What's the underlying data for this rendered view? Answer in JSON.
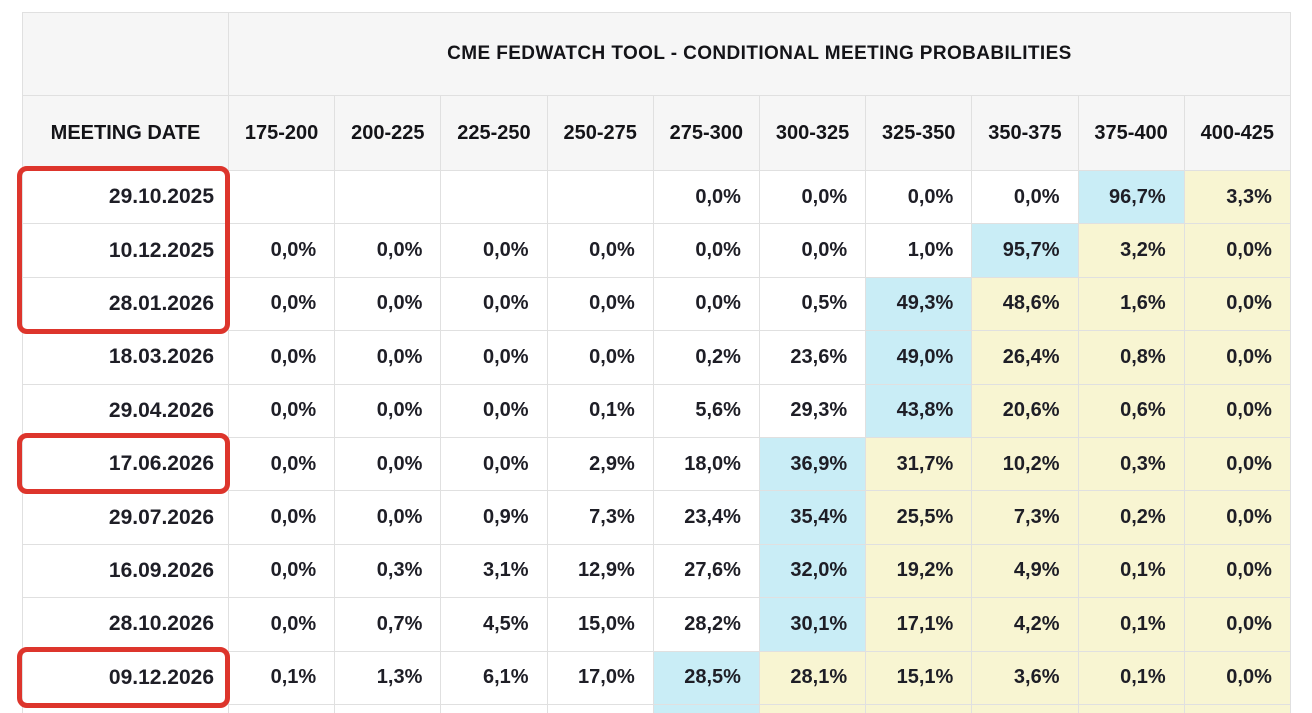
{
  "title": "CME FEDWATCH TOOL - CONDITIONAL MEETING PROBABILITIES",
  "colors": {
    "cyan": "#c9edf6",
    "yellow": "#f8f5d2",
    "red": "#dd352c",
    "grid": "#e0e0e0",
    "header-bg": "#f6f6f6",
    "text": "#1e1e26"
  },
  "chart_data": {
    "type": "table",
    "title": "CME FEDWATCH TOOL - CONDITIONAL MEETING PROBABILITIES",
    "columns": [
      "MEETING DATE",
      "175-200",
      "200-225",
      "225-250",
      "250-275",
      "275-300",
      "300-325",
      "325-350",
      "350-375",
      "375-400",
      "400-425"
    ],
    "rows": [
      {
        "date": "29.10.2025",
        "values": [
          "",
          "",
          "",
          "",
          "0,0%",
          "0,0%",
          "0,0%",
          "0,0%",
          "96,7%",
          "3,3%"
        ],
        "cyan_col": 8,
        "yellow_from": 9
      },
      {
        "date": "10.12.2025",
        "values": [
          "0,0%",
          "0,0%",
          "0,0%",
          "0,0%",
          "0,0%",
          "0,0%",
          "1,0%",
          "95,7%",
          "3,2%",
          "0,0%"
        ],
        "cyan_col": 7,
        "yellow_from": 8
      },
      {
        "date": "28.01.2026",
        "values": [
          "0,0%",
          "0,0%",
          "0,0%",
          "0,0%",
          "0,0%",
          "0,5%",
          "49,3%",
          "48,6%",
          "1,6%",
          "0,0%"
        ],
        "cyan_col": 6,
        "yellow_from": 7
      },
      {
        "date": "18.03.2026",
        "values": [
          "0,0%",
          "0,0%",
          "0,0%",
          "0,0%",
          "0,2%",
          "23,6%",
          "49,0%",
          "26,4%",
          "0,8%",
          "0,0%"
        ],
        "cyan_col": 6,
        "yellow_from": 7
      },
      {
        "date": "29.04.2026",
        "values": [
          "0,0%",
          "0,0%",
          "0,0%",
          "0,1%",
          "5,6%",
          "29,3%",
          "43,8%",
          "20,6%",
          "0,6%",
          "0,0%"
        ],
        "cyan_col": 6,
        "yellow_from": 7
      },
      {
        "date": "17.06.2026",
        "values": [
          "0,0%",
          "0,0%",
          "0,0%",
          "2,9%",
          "18,0%",
          "36,9%",
          "31,7%",
          "10,2%",
          "0,3%",
          "0,0%"
        ],
        "cyan_col": 5,
        "yellow_from": 6
      },
      {
        "date": "29.07.2026",
        "values": [
          "0,0%",
          "0,0%",
          "0,9%",
          "7,3%",
          "23,4%",
          "35,4%",
          "25,5%",
          "7,3%",
          "0,2%",
          "0,0%"
        ],
        "cyan_col": 5,
        "yellow_from": 6
      },
      {
        "date": "16.09.2026",
        "values": [
          "0,0%",
          "0,3%",
          "3,1%",
          "12,9%",
          "27,6%",
          "32,0%",
          "19,2%",
          "4,9%",
          "0,1%",
          "0,0%"
        ],
        "cyan_col": 5,
        "yellow_from": 6
      },
      {
        "date": "28.10.2026",
        "values": [
          "0,0%",
          "0,7%",
          "4,5%",
          "15,0%",
          "28,2%",
          "30,1%",
          "17,1%",
          "4,2%",
          "0,1%",
          "0,0%"
        ],
        "cyan_col": 5,
        "yellow_from": 6
      },
      {
        "date": "09.12.2026",
        "values": [
          "0,1%",
          "1,3%",
          "6,1%",
          "17,0%",
          "28,5%",
          "28,1%",
          "15,1%",
          "3,6%",
          "0,1%",
          "0,0%"
        ],
        "cyan_col": 4,
        "yellow_from": 5
      }
    ],
    "partial_next_row": {
      "cyan_col": 4,
      "yellow_from": 5
    },
    "red_boxes": [
      {
        "from_row": 0,
        "to_row": 2
      },
      {
        "from_row": 5,
        "to_row": 5
      },
      {
        "from_row": 9,
        "to_row": 9
      }
    ]
  }
}
